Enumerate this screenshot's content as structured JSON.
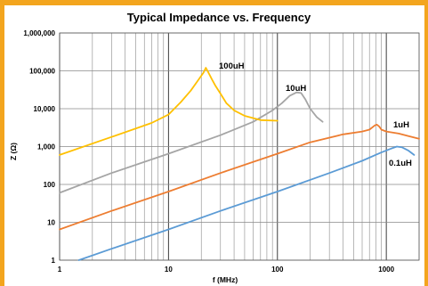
{
  "chart_data": {
    "type": "line",
    "title": "Typical Impedance vs. Frequency",
    "xlabel": "f (MHz)",
    "ylabel": "Z (Ω)",
    "x_scale": "log",
    "y_scale": "log",
    "xlim": [
      1,
      2000
    ],
    "ylim": [
      1,
      1000000
    ],
    "grid": true,
    "x_tick_labels": [
      {
        "value": 1,
        "label": "1"
      },
      {
        "value": 10,
        "label": "10"
      },
      {
        "value": 100,
        "label": "100"
      },
      {
        "value": 1000,
        "label": "1000"
      }
    ],
    "y_tick_labels": [
      {
        "value": 1,
        "label": "1"
      },
      {
        "value": 10,
        "label": "10"
      },
      {
        "value": 100,
        "label": "100"
      },
      {
        "value": 1000,
        "label": "1,000"
      },
      {
        "value": 10000,
        "label": "10,000"
      },
      {
        "value": 100000,
        "label": "100,000"
      },
      {
        "value": 1000000,
        "label": "1,000,000"
      }
    ],
    "series": [
      {
        "name": "0.1uH",
        "color": "#5b9bd5",
        "points": [
          [
            1.5,
            1.0
          ],
          [
            3,
            2.0
          ],
          [
            10,
            6.5
          ],
          [
            30,
            20
          ],
          [
            100,
            65
          ],
          [
            300,
            200
          ],
          [
            600,
            420
          ],
          [
            900,
            700
          ],
          [
            1100,
            880
          ],
          [
            1250,
            1000
          ],
          [
            1400,
            950
          ],
          [
            1600,
            780
          ],
          [
            1800,
            600
          ]
        ]
      },
      {
        "name": "1uH",
        "color": "#ed7d31",
        "points": [
          [
            1,
            6.5
          ],
          [
            3,
            20
          ],
          [
            10,
            65
          ],
          [
            30,
            200
          ],
          [
            100,
            650
          ],
          [
            200,
            1300
          ],
          [
            400,
            2100
          ],
          [
            600,
            2500
          ],
          [
            700,
            2800
          ],
          [
            780,
            3600
          ],
          [
            820,
            3800
          ],
          [
            860,
            3400
          ],
          [
            900,
            2800
          ],
          [
            1000,
            2500
          ],
          [
            1300,
            2200
          ],
          [
            1600,
            1900
          ],
          [
            2000,
            1600
          ]
        ]
      },
      {
        "name": "10uH",
        "color": "#a5a5a5",
        "points": [
          [
            1,
            60
          ],
          [
            3,
            200
          ],
          [
            10,
            650
          ],
          [
            30,
            2000
          ],
          [
            60,
            4500
          ],
          [
            90,
            9000
          ],
          [
            110,
            14000
          ],
          [
            130,
            22000
          ],
          [
            150,
            27000
          ],
          [
            165,
            26000
          ],
          [
            180,
            18000
          ],
          [
            200,
            10000
          ],
          [
            230,
            6000
          ],
          [
            260,
            4500
          ]
        ]
      },
      {
        "name": "100uH",
        "color": "#ffc000",
        "points": [
          [
            1,
            600
          ],
          [
            3,
            1800
          ],
          [
            7,
            4200
          ],
          [
            10,
            7000
          ],
          [
            13,
            15000
          ],
          [
            16,
            30000
          ],
          [
            19,
            60000
          ],
          [
            21,
            90000
          ],
          [
            22,
            120000
          ],
          [
            23,
            95000
          ],
          [
            25,
            60000
          ],
          [
            27,
            40000
          ],
          [
            30,
            25000
          ],
          [
            34,
            14000
          ],
          [
            40,
            9000
          ],
          [
            50,
            6500
          ],
          [
            70,
            5000
          ],
          [
            100,
            4800
          ]
        ]
      }
    ],
    "labels": [
      {
        "series": "100uH",
        "text": "100uH"
      },
      {
        "series": "10uH",
        "text": "10uH"
      },
      {
        "series": "1uH",
        "text": "1uH"
      },
      {
        "series": "0.1uH",
        "text": "0.1uH"
      }
    ]
  }
}
